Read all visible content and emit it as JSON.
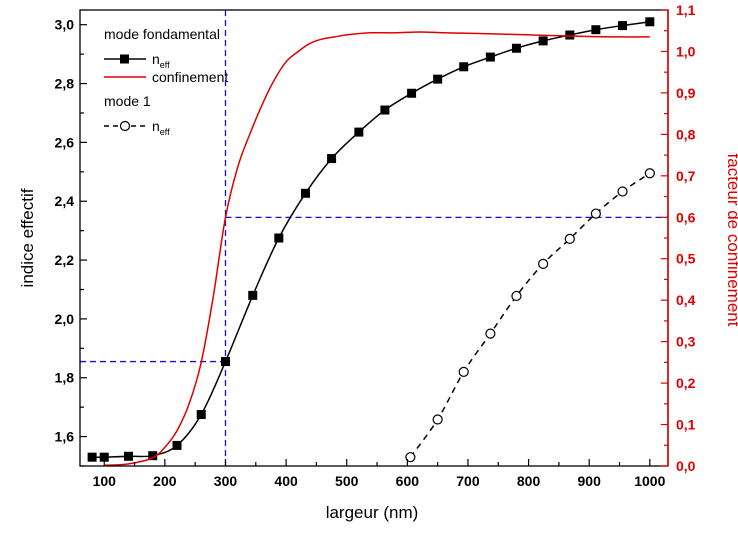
{
  "chart_data": {
    "type": "line",
    "xlabel": "largeur (nm)",
    "ylabel": "indice effectif",
    "y2label": "facteur de confinement",
    "xlim": [
      60,
      1030
    ],
    "ylim": [
      1.5,
      3.05
    ],
    "y2lim": [
      0.0,
      1.1
    ],
    "x_ticks": [
      100,
      200,
      300,
      400,
      500,
      600,
      700,
      800,
      900,
      1000
    ],
    "y_ticks": [
      1.6,
      1.8,
      2.0,
      2.2,
      2.4,
      2.6,
      2.8,
      3.0
    ],
    "y_tick_labels": [
      "1,6",
      "1,8",
      "2,0",
      "2,2",
      "2,4",
      "2,6",
      "2,8",
      "3,0"
    ],
    "y2_ticks": [
      0.0,
      0.1,
      0.2,
      0.3,
      0.4,
      0.5,
      0.6,
      0.7,
      0.8,
      0.9,
      1.0,
      1.1
    ],
    "y2_tick_labels": [
      "0,0",
      "0,1",
      "0,2",
      "0,3",
      "0,4",
      "0,5",
      "0,6",
      "0,7",
      "0,8",
      "0,9",
      "1,0",
      "1,1"
    ],
    "y2_color": "#e00000",
    "guide_color": "#1010c8",
    "legend": {
      "title_1": "mode fondamental",
      "neff_label": "n",
      "neff_sub": "eff",
      "conf_label": "confinement",
      "title_2": "mode 1"
    },
    "series": [
      {
        "name": "n_eff (mode fondamental)",
        "axis": "left",
        "style": "solid",
        "marker": "filled-square",
        "x": [
          80,
          100,
          140,
          180,
          220,
          260,
          300,
          345,
          388,
          432,
          475,
          520,
          563,
          607,
          650,
          693,
          737,
          780,
          824,
          868,
          911,
          955,
          1000
        ],
        "y": [
          1.53,
          1.53,
          1.533,
          1.535,
          1.57,
          1.675,
          1.855,
          2.08,
          2.275,
          2.427,
          2.545,
          2.635,
          2.71,
          2.767,
          2.815,
          2.857,
          2.89,
          2.92,
          2.945,
          2.965,
          2.983,
          2.997,
          3.01
        ]
      },
      {
        "name": "confinement",
        "axis": "right",
        "style": "solid",
        "marker": "none",
        "x": [
          100,
          140,
          180,
          200,
          220,
          240,
          260,
          280,
          300,
          320,
          340,
          360,
          380,
          400,
          420,
          440,
          460,
          480,
          500,
          540,
          580,
          620,
          660,
          700,
          750,
          800,
          850,
          900,
          950,
          1000
        ],
        "y": [
          0.002,
          0.005,
          0.02,
          0.045,
          0.085,
          0.15,
          0.25,
          0.41,
          0.6,
          0.72,
          0.8,
          0.87,
          0.93,
          0.975,
          1.0,
          1.02,
          1.03,
          1.035,
          1.04,
          1.045,
          1.045,
          1.047,
          1.045,
          1.044,
          1.042,
          1.04,
          1.038,
          1.036,
          1.035,
          1.035
        ]
      },
      {
        "name": "n_eff (mode 1)",
        "axis": "left",
        "style": "dashed",
        "marker": "open-circle",
        "x": [
          605,
          650,
          693,
          737,
          780,
          824,
          868,
          911,
          955,
          1000
        ],
        "y": [
          1.53,
          1.658,
          1.82,
          1.95,
          2.078,
          2.187,
          2.272,
          2.358,
          2.433,
          2.495
        ]
      }
    ],
    "guides": [
      {
        "type": "vertical",
        "x": 300
      },
      {
        "type": "horizontal",
        "axis": "left",
        "y": 1.855,
        "from": "left-edge",
        "to_x": 300
      },
      {
        "type": "horizontal",
        "axis": "left",
        "y": 2.345,
        "from_x": 300,
        "to": "right-edge"
      }
    ]
  }
}
